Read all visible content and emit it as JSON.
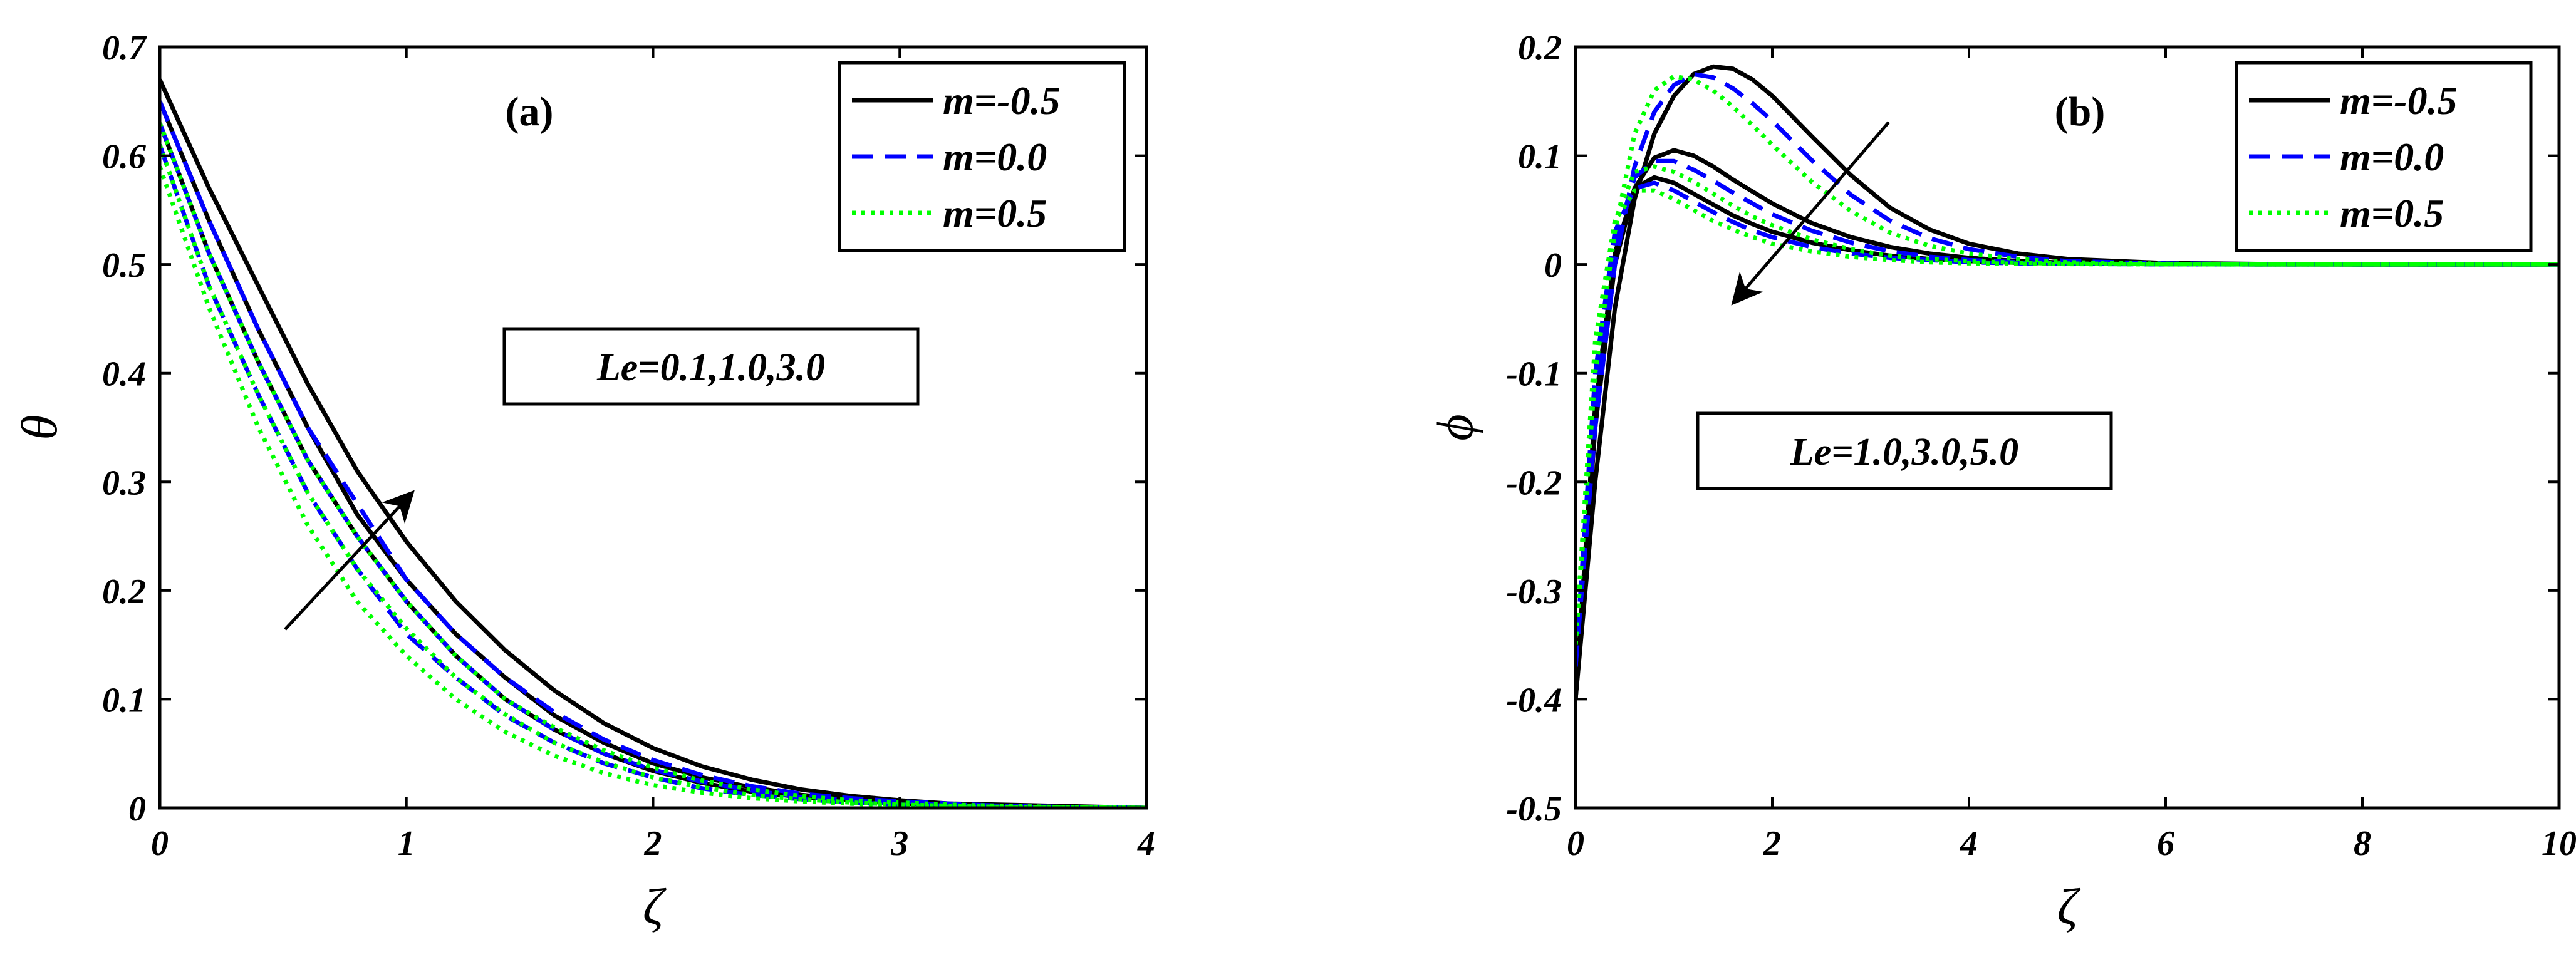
{
  "colors": {
    "m_neg": "#000000",
    "m_zero": "#0000ff",
    "m_pos": "#00ff00",
    "frame": "#000000",
    "background": "#ffffff"
  },
  "chart_data": [
    {
      "type": "line",
      "panel_label": "(a)",
      "xlabel": "ζ",
      "ylabel": "θ",
      "xlim": [
        0,
        4
      ],
      "ylim": [
        0,
        0.7
      ],
      "xticks": [
        "0",
        "1",
        "2",
        "3",
        "4"
      ],
      "yticks": [
        "0",
        "0.1",
        "0.2",
        "0.3",
        "0.4",
        "0.5",
        "0.6",
        "0.7"
      ],
      "legend_position": "top-right",
      "legend": [
        "m=-0.5",
        "m=0.0",
        "m=0.5"
      ],
      "annotation": "Le=0.1,1.0,3.0",
      "x": [
        0,
        0.2,
        0.4,
        0.6,
        0.8,
        1.0,
        1.2,
        1.4,
        1.6,
        1.8,
        2.0,
        2.2,
        2.4,
        2.6,
        2.8,
        3.0,
        3.2,
        3.4,
        3.6,
        3.8,
        4.0
      ],
      "series": [
        {
          "name": "m=-0.5",
          "group": "m_neg",
          "le": "0.1",
          "values": [
            0.63,
            0.51,
            0.41,
            0.32,
            0.25,
            0.19,
            0.14,
            0.1,
            0.072,
            0.05,
            0.034,
            0.023,
            0.015,
            0.01,
            0.007,
            0.004,
            0.003,
            0.002,
            0.001,
            0.0005,
            0.0
          ]
        },
        {
          "name": "",
          "group": "m_neg",
          "le": "1.0",
          "values": [
            0.65,
            0.54,
            0.44,
            0.35,
            0.27,
            0.21,
            0.16,
            0.12,
            0.085,
            0.06,
            0.041,
            0.028,
            0.019,
            0.012,
            0.008,
            0.005,
            0.003,
            0.002,
            0.001,
            0.0005,
            0.0
          ]
        },
        {
          "name": "",
          "group": "m_neg",
          "le": "3.0",
          "values": [
            0.67,
            0.57,
            0.48,
            0.39,
            0.31,
            0.245,
            0.19,
            0.145,
            0.108,
            0.078,
            0.055,
            0.038,
            0.026,
            0.017,
            0.011,
            0.007,
            0.004,
            0.003,
            0.002,
            0.001,
            0.0
          ]
        },
        {
          "name": "m=0.0",
          "group": "m_zero",
          "le": "0.1",
          "values": [
            0.61,
            0.48,
            0.38,
            0.29,
            0.22,
            0.16,
            0.12,
            0.085,
            0.06,
            0.041,
            0.028,
            0.018,
            0.012,
            0.008,
            0.005,
            0.003,
            0.002,
            0.001,
            0.0008,
            0.0004,
            0.0
          ]
        },
        {
          "name": "",
          "group": "m_zero",
          "le": "1.0",
          "values": [
            0.63,
            0.51,
            0.41,
            0.32,
            0.25,
            0.19,
            0.14,
            0.1,
            0.072,
            0.05,
            0.035,
            0.024,
            0.016,
            0.01,
            0.007,
            0.004,
            0.003,
            0.002,
            0.001,
            0.0005,
            0.0
          ]
        },
        {
          "name": "",
          "group": "m_zero",
          "le": "3.0",
          "values": [
            0.65,
            0.54,
            0.44,
            0.35,
            0.28,
            0.21,
            0.16,
            0.12,
            0.088,
            0.063,
            0.044,
            0.03,
            0.02,
            0.013,
            0.009,
            0.006,
            0.004,
            0.002,
            0.001,
            0.0005,
            0.0
          ]
        },
        {
          "name": "m=0.5",
          "group": "m_pos",
          "le": "0.1",
          "values": [
            0.59,
            0.46,
            0.35,
            0.26,
            0.19,
            0.14,
            0.1,
            0.07,
            0.048,
            0.032,
            0.021,
            0.014,
            0.009,
            0.006,
            0.004,
            0.002,
            0.001,
            0.001,
            0.0005,
            0.0002,
            0.0
          ]
        },
        {
          "name": "",
          "group": "m_pos",
          "le": "1.0",
          "values": [
            0.61,
            0.48,
            0.38,
            0.29,
            0.22,
            0.165,
            0.12,
            0.086,
            0.06,
            0.042,
            0.028,
            0.019,
            0.012,
            0.008,
            0.005,
            0.003,
            0.002,
            0.001,
            0.0007,
            0.0003,
            0.0
          ]
        },
        {
          "name": "",
          "group": "m_pos",
          "le": "3.0",
          "values": [
            0.63,
            0.51,
            0.41,
            0.32,
            0.25,
            0.19,
            0.14,
            0.1,
            0.074,
            0.053,
            0.037,
            0.025,
            0.017,
            0.011,
            0.007,
            0.005,
            0.003,
            0.002,
            0.001,
            0.0005,
            0.0
          ]
        }
      ]
    },
    {
      "type": "line",
      "panel_label": "(b)",
      "xlabel": "ζ",
      "ylabel": "ϕ",
      "xlim": [
        0,
        10
      ],
      "ylim": [
        -0.5,
        0.2
      ],
      "xticks": [
        "0",
        "2",
        "4",
        "6",
        "8",
        "10"
      ],
      "yticks": [
        "-0.5",
        "-0.4",
        "-0.3",
        "-0.2",
        "-0.1",
        "0",
        "0.1",
        "0.2"
      ],
      "legend_position": "top-right",
      "legend": [
        "m=-0.5",
        "m=0.0",
        "m=0.5"
      ],
      "annotation": "Le=1.0,3.0,5.0",
      "x": [
        0,
        0.2,
        0.4,
        0.6,
        0.8,
        1.0,
        1.2,
        1.4,
        1.6,
        1.8,
        2.0,
        2.4,
        2.8,
        3.2,
        3.6,
        4.0,
        4.5,
        5.0,
        6.0,
        7.0,
        8.0,
        9.0,
        10.0
      ],
      "series": [
        {
          "name": "m=-0.5",
          "group": "m_neg",
          "le": "1.0",
          "values": [
            -0.4,
            -0.13,
            0.01,
            0.07,
            0.08,
            0.075,
            0.065,
            0.055,
            0.045,
            0.037,
            0.03,
            0.02,
            0.013,
            0.008,
            0.005,
            0.003,
            0.0015,
            0.0008,
            0.0002,
            0.0,
            0.0,
            0.0,
            0.0
          ]
        },
        {
          "name": "",
          "group": "m_neg",
          "le": "3.0",
          "values": [
            -0.4,
            -0.15,
            0.0,
            0.07,
            0.098,
            0.105,
            0.1,
            0.09,
            0.078,
            0.067,
            0.056,
            0.038,
            0.025,
            0.016,
            0.01,
            0.006,
            0.003,
            0.0015,
            0.0004,
            0.0001,
            0.0,
            0.0,
            0.0
          ]
        },
        {
          "name": "",
          "group": "m_neg",
          "le": "5.0",
          "values": [
            -0.4,
            -0.2,
            -0.04,
            0.06,
            0.12,
            0.155,
            0.175,
            0.182,
            0.18,
            0.17,
            0.155,
            0.118,
            0.082,
            0.052,
            0.032,
            0.019,
            0.01,
            0.005,
            0.0012,
            0.0003,
            0.0,
            0.0,
            0.0
          ]
        },
        {
          "name": "m=0.0",
          "group": "m_zero",
          "le": "1.0",
          "values": [
            -0.37,
            -0.1,
            0.03,
            0.07,
            0.075,
            0.068,
            0.058,
            0.048,
            0.039,
            0.031,
            0.025,
            0.016,
            0.01,
            0.006,
            0.004,
            0.002,
            0.001,
            0.0005,
            0.0001,
            0.0,
            0.0,
            0.0,
            0.0
          ]
        },
        {
          "name": "",
          "group": "m_zero",
          "le": "3.0",
          "values": [
            -0.37,
            -0.12,
            0.02,
            0.08,
            0.095,
            0.095,
            0.087,
            0.077,
            0.066,
            0.056,
            0.046,
            0.031,
            0.02,
            0.012,
            0.007,
            0.004,
            0.002,
            0.001,
            0.0002,
            0.0,
            0.0,
            0.0,
            0.0
          ]
        },
        {
          "name": "",
          "group": "m_zero",
          "le": "5.0",
          "values": [
            -0.37,
            -0.15,
            0.0,
            0.09,
            0.14,
            0.165,
            0.175,
            0.172,
            0.162,
            0.148,
            0.132,
            0.096,
            0.064,
            0.04,
            0.024,
            0.014,
            0.007,
            0.003,
            0.0008,
            0.0002,
            0.0,
            0.0,
            0.0
          ]
        },
        {
          "name": "m=0.5",
          "group": "m_pos",
          "le": "1.0",
          "values": [
            -0.35,
            -0.07,
            0.04,
            0.068,
            0.068,
            0.06,
            0.05,
            0.04,
            0.032,
            0.025,
            0.019,
            0.012,
            0.007,
            0.004,
            0.002,
            0.001,
            0.0006,
            0.0003,
            0.0001,
            0.0,
            0.0,
            0.0,
            0.0
          ]
        },
        {
          "name": "",
          "group": "m_pos",
          "le": "3.0",
          "values": [
            -0.35,
            -0.09,
            0.04,
            0.085,
            0.09,
            0.085,
            0.076,
            0.065,
            0.054,
            0.044,
            0.036,
            0.023,
            0.014,
            0.008,
            0.005,
            0.003,
            0.0015,
            0.0007,
            0.0002,
            0.0,
            0.0,
            0.0,
            0.0
          ]
        },
        {
          "name": "",
          "group": "m_pos",
          "le": "5.0",
          "values": [
            -0.35,
            -0.1,
            0.03,
            0.12,
            0.16,
            0.173,
            0.17,
            0.16,
            0.145,
            0.128,
            0.11,
            0.076,
            0.049,
            0.029,
            0.017,
            0.01,
            0.005,
            0.002,
            0.0005,
            0.0001,
            0.0,
            0.0,
            0.0
          ]
        }
      ]
    }
  ]
}
